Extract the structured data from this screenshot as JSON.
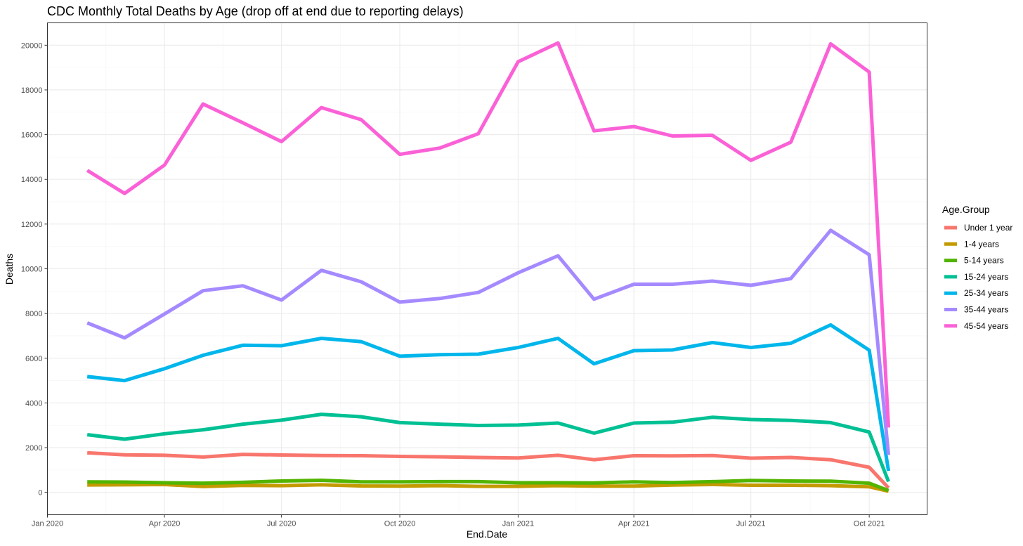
{
  "chart_data": {
    "type": "line",
    "title": "CDC Monthly Total Deaths by Age (drop off at end due to reporting delays)",
    "xlabel": "End.Date",
    "ylabel": "Deaths",
    "legend_title": "Age.Group",
    "legend_position": "right",
    "grid": true,
    "xlim": [
      "2020-01-01",
      "2021-11-15"
    ],
    "ylim": [
      -1000,
      21000
    ],
    "x_ticks": [
      "2020-01-01",
      "2020-04-01",
      "2020-07-01",
      "2020-10-01",
      "2021-01-01",
      "2021-04-01",
      "2021-07-01",
      "2021-10-01"
    ],
    "x_tick_labels": [
      "Jan 2020",
      "Apr 2020",
      "Jul 2020",
      "Oct 2020",
      "Jan 2021",
      "Apr 2021",
      "Jul 2021",
      "Oct 2021"
    ],
    "y_ticks": [
      0,
      2000,
      4000,
      6000,
      8000,
      10000,
      12000,
      14000,
      16000,
      18000,
      20000
    ],
    "y_tick_labels": [
      "0",
      "2000",
      "4000",
      "6000",
      "8000",
      "10000",
      "12000",
      "14000",
      "16000",
      "18000",
      "20000"
    ],
    "x": [
      "2020-02-01",
      "2020-03-01",
      "2020-04-01",
      "2020-05-01",
      "2020-06-01",
      "2020-07-01",
      "2020-08-01",
      "2020-09-01",
      "2020-10-01",
      "2020-11-01",
      "2020-12-01",
      "2021-01-01",
      "2021-02-01",
      "2021-03-01",
      "2021-04-01",
      "2021-05-01",
      "2021-06-01",
      "2021-07-01",
      "2021-08-01",
      "2021-09-01",
      "2021-10-01",
      "2021-10-16"
    ],
    "series": [
      {
        "name": "Under 1 year",
        "color": "#F8766D",
        "values": [
          1770,
          1680,
          1660,
          1580,
          1700,
          1670,
          1650,
          1640,
          1610,
          1590,
          1560,
          1540,
          1660,
          1460,
          1640,
          1630,
          1650,
          1530,
          1560,
          1460,
          1120,
          200
        ]
      },
      {
        "name": "1-4 years",
        "color": "#C49A00",
        "values": [
          330,
          340,
          350,
          260,
          310,
          300,
          340,
          290,
          280,
          300,
          270,
          270,
          300,
          280,
          280,
          330,
          350,
          320,
          320,
          300,
          250,
          50
        ]
      },
      {
        "name": "5-14 years",
        "color": "#53B400",
        "values": [
          470,
          460,
          430,
          410,
          450,
          510,
          540,
          470,
          470,
          480,
          480,
          430,
          430,
          420,
          470,
          440,
          480,
          530,
          510,
          500,
          410,
          80
        ]
      },
      {
        "name": "15-24 years",
        "color": "#00C094",
        "values": [
          2580,
          2380,
          2620,
          2800,
          3050,
          3230,
          3490,
          3380,
          3120,
          3050,
          2990,
          3010,
          3100,
          2650,
          3100,
          3140,
          3360,
          3260,
          3220,
          3120,
          2700,
          480
        ]
      },
      {
        "name": "25-34 years",
        "color": "#00B6EB",
        "values": [
          5180,
          5000,
          5530,
          6130,
          6580,
          6560,
          6890,
          6740,
          6090,
          6160,
          6180,
          6480,
          6890,
          5750,
          6340,
          6370,
          6700,
          6480,
          6670,
          7490,
          6360,
          960
        ]
      },
      {
        "name": "35-44 years",
        "color": "#A58AFF",
        "values": [
          7580,
          6910,
          7980,
          9020,
          9240,
          8600,
          9930,
          9420,
          8510,
          8670,
          8940,
          9820,
          10580,
          8640,
          9310,
          9310,
          9450,
          9260,
          9560,
          11720,
          10630,
          1670
        ]
      },
      {
        "name": "45-54 years",
        "color": "#FB61D7",
        "values": [
          14400,
          13370,
          14640,
          17370,
          16530,
          15690,
          17210,
          16670,
          15120,
          15400,
          16040,
          19260,
          20100,
          16170,
          16360,
          15940,
          15970,
          14850,
          15660,
          20060,
          18800,
          2900
        ]
      }
    ]
  }
}
